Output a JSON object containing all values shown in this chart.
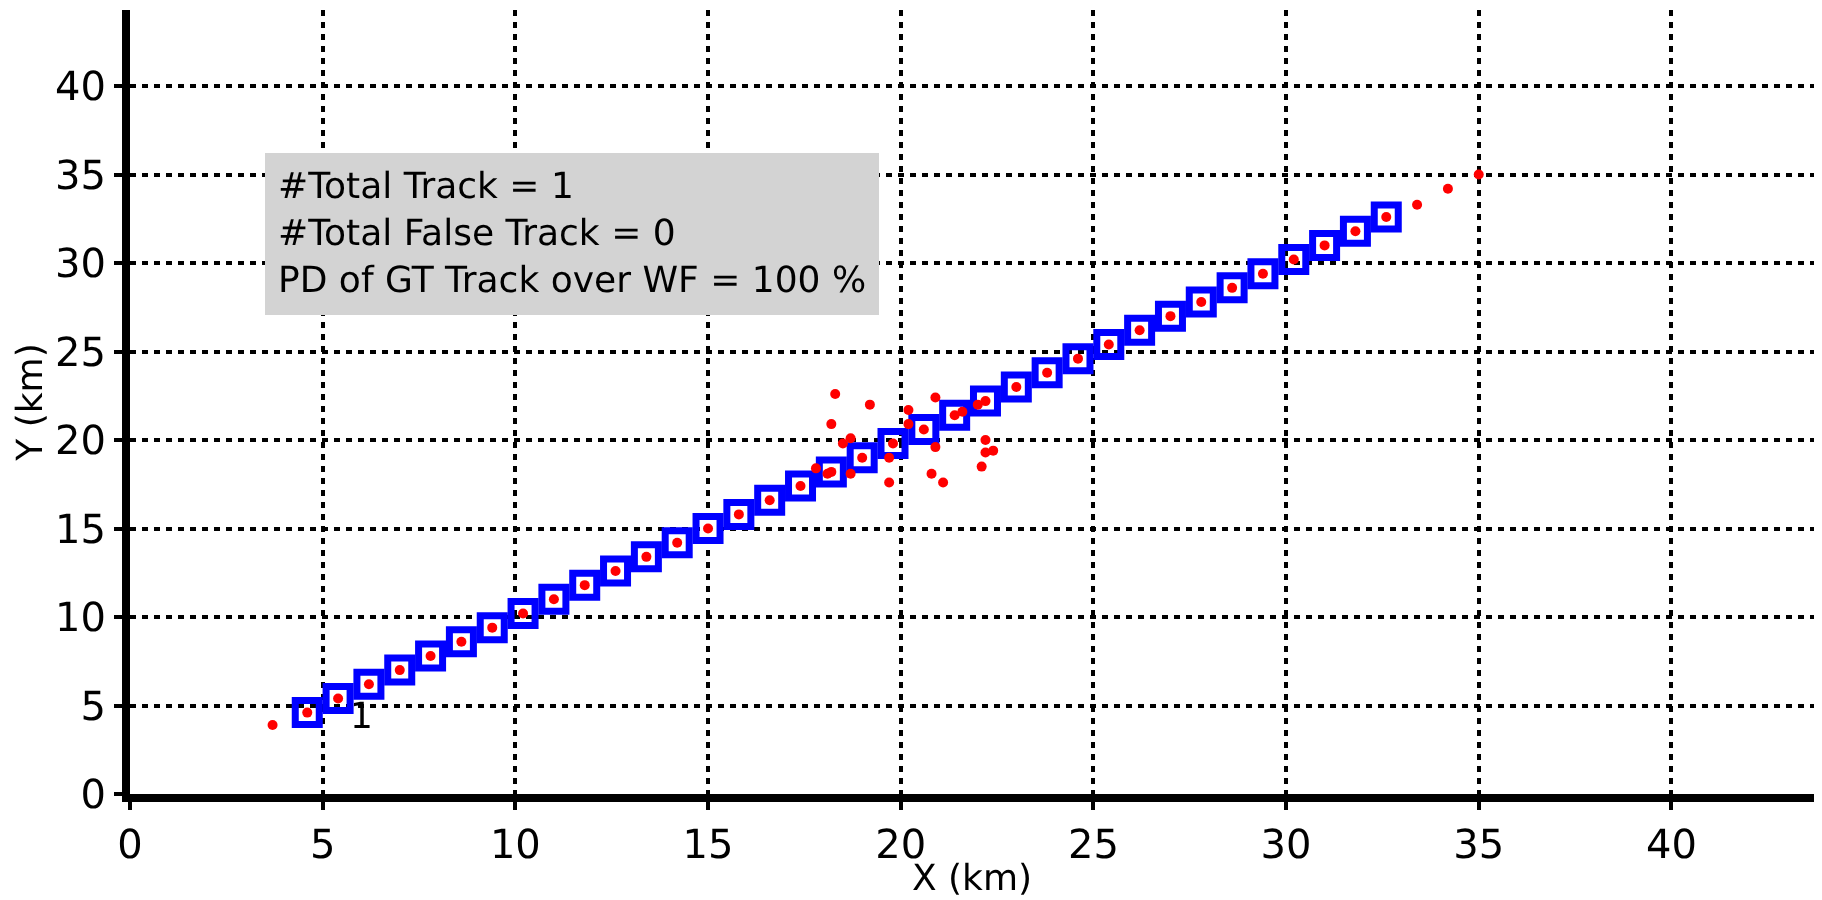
{
  "chart_data": {
    "type": "scatter",
    "xlabel": "X (km)",
    "ylabel": "Y (km)",
    "xlim": [
      0,
      43.7
    ],
    "ylim": [
      0,
      44.3
    ],
    "xticks": [
      0,
      5,
      10,
      15,
      20,
      25,
      30,
      35,
      40
    ],
    "yticks": [
      0,
      5,
      10,
      15,
      20,
      25,
      30,
      35,
      40
    ],
    "grid": true,
    "annotations": [
      "#Total Track = 1",
      "#Total False Track = 0",
      "PD of GT Track over WF = 100 %",
      {
        "text": "1",
        "x": 5.6,
        "y": 4.3
      }
    ],
    "series": [
      {
        "marker": "square",
        "color": "#0000ff",
        "x": [
          4.6,
          5.4,
          6.2,
          7.0,
          7.8,
          8.6,
          9.4,
          10.2,
          11.0,
          11.8,
          12.6,
          13.4,
          14.2,
          15.0,
          15.8,
          16.6,
          17.4,
          18.2,
          19.0,
          19.8,
          20.6,
          21.4,
          22.2,
          23.0,
          23.8,
          24.6,
          25.4,
          26.2,
          27.0,
          27.8,
          28.6,
          29.4,
          30.2,
          31.0,
          31.8,
          32.6
        ],
        "values": [
          4.6,
          5.4,
          6.2,
          7.0,
          7.8,
          8.6,
          9.4,
          10.2,
          11.0,
          11.8,
          12.6,
          13.4,
          14.2,
          15.0,
          15.8,
          16.6,
          17.4,
          18.2,
          19.0,
          19.8,
          20.6,
          21.4,
          22.2,
          23.0,
          23.8,
          24.6,
          25.4,
          26.2,
          27.0,
          27.8,
          28.6,
          29.4,
          30.2,
          31.0,
          31.8,
          32.6
        ]
      },
      {
        "marker": "circle",
        "color": "#ff0000",
        "x": [
          4.6,
          5.4,
          6.2,
          7.0,
          7.8,
          8.6,
          9.4,
          10.2,
          11.0,
          11.8,
          12.6,
          13.4,
          14.2,
          15.0,
          15.8,
          16.6,
          17.4,
          18.2,
          19.0,
          19.8,
          20.6,
          21.4,
          22.2,
          23.0,
          23.8,
          24.6,
          25.4,
          26.2,
          27.0,
          27.8,
          28.6,
          29.4,
          30.2,
          31.0,
          31.8,
          32.6,
          3.7,
          33.4,
          34.2,
          35.0,
          18.3,
          19.2,
          18.2,
          18.5,
          18.7,
          17.8,
          18.1,
          18.7,
          19.7,
          19.7,
          20.2,
          20.2,
          20.9,
          20.9,
          20.8,
          21.1,
          21.6,
          22.0,
          22.2,
          22.4,
          22.2,
          22.1
        ],
        "values": [
          4.6,
          5.4,
          6.2,
          7.0,
          7.8,
          8.6,
          9.4,
          10.2,
          11.0,
          11.8,
          12.6,
          13.4,
          14.2,
          15.0,
          15.8,
          16.6,
          17.4,
          18.2,
          19.0,
          19.8,
          20.6,
          21.4,
          22.2,
          23.0,
          23.8,
          24.6,
          25.4,
          26.2,
          27.0,
          27.8,
          28.6,
          29.4,
          30.2,
          31.0,
          31.8,
          32.6,
          3.9,
          33.3,
          34.2,
          35.0,
          22.6,
          22.0,
          20.9,
          19.8,
          20.1,
          18.4,
          18.1,
          18.1,
          19.0,
          17.6,
          21.7,
          20.9,
          22.4,
          19.6,
          18.1,
          17.6,
          21.6,
          22.0,
          20.0,
          19.4,
          19.3,
          18.5
        ]
      }
    ]
  }
}
